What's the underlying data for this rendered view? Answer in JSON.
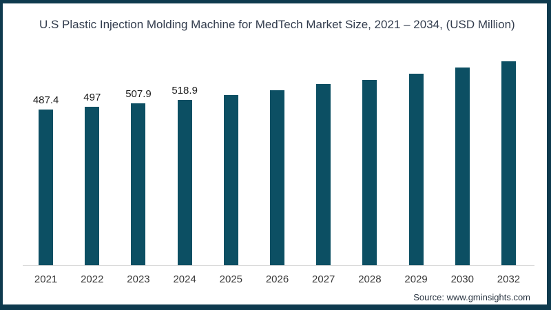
{
  "header": {
    "title": "U.S Plastic Injection Molding Machine for MedTech Market Size, 2021 – 2034, (USD Million)"
  },
  "footer": {
    "source": "Source: www.gminsights.com"
  },
  "colors": {
    "bar": "#0c4f63",
    "frame": "#0e3a4e",
    "title_text": "#323c4d",
    "value_label_text": "#1c1c1c",
    "tick_label_text": "#3a3a3a",
    "axis_line": "#d9d9d9",
    "source_text": "#2a3542",
    "background": "#ffffff"
  },
  "chart_data": {
    "type": "bar",
    "title": "U.S Plastic Injection Molding Machine for MedTech Market Size, 2021 – 2034, (USD Million)",
    "categories": [
      "2021",
      "2022",
      "2023",
      "2024",
      "2025",
      "2026",
      "2027",
      "2028",
      "2029",
      "2030",
      "2032"
    ],
    "values": [
      487.4,
      497,
      507.9,
      518.9,
      533,
      549,
      567,
      582,
      600,
      620,
      639
    ],
    "data_labels": [
      "487.4",
      "497",
      "507.9",
      "518.9",
      "",
      "",
      "",
      "",
      "",
      "",
      ""
    ],
    "xlabel": "",
    "ylabel": "",
    "ylim": [
      0,
      650
    ],
    "grid": false,
    "legend": false,
    "bar_color": "#0c4f63"
  }
}
